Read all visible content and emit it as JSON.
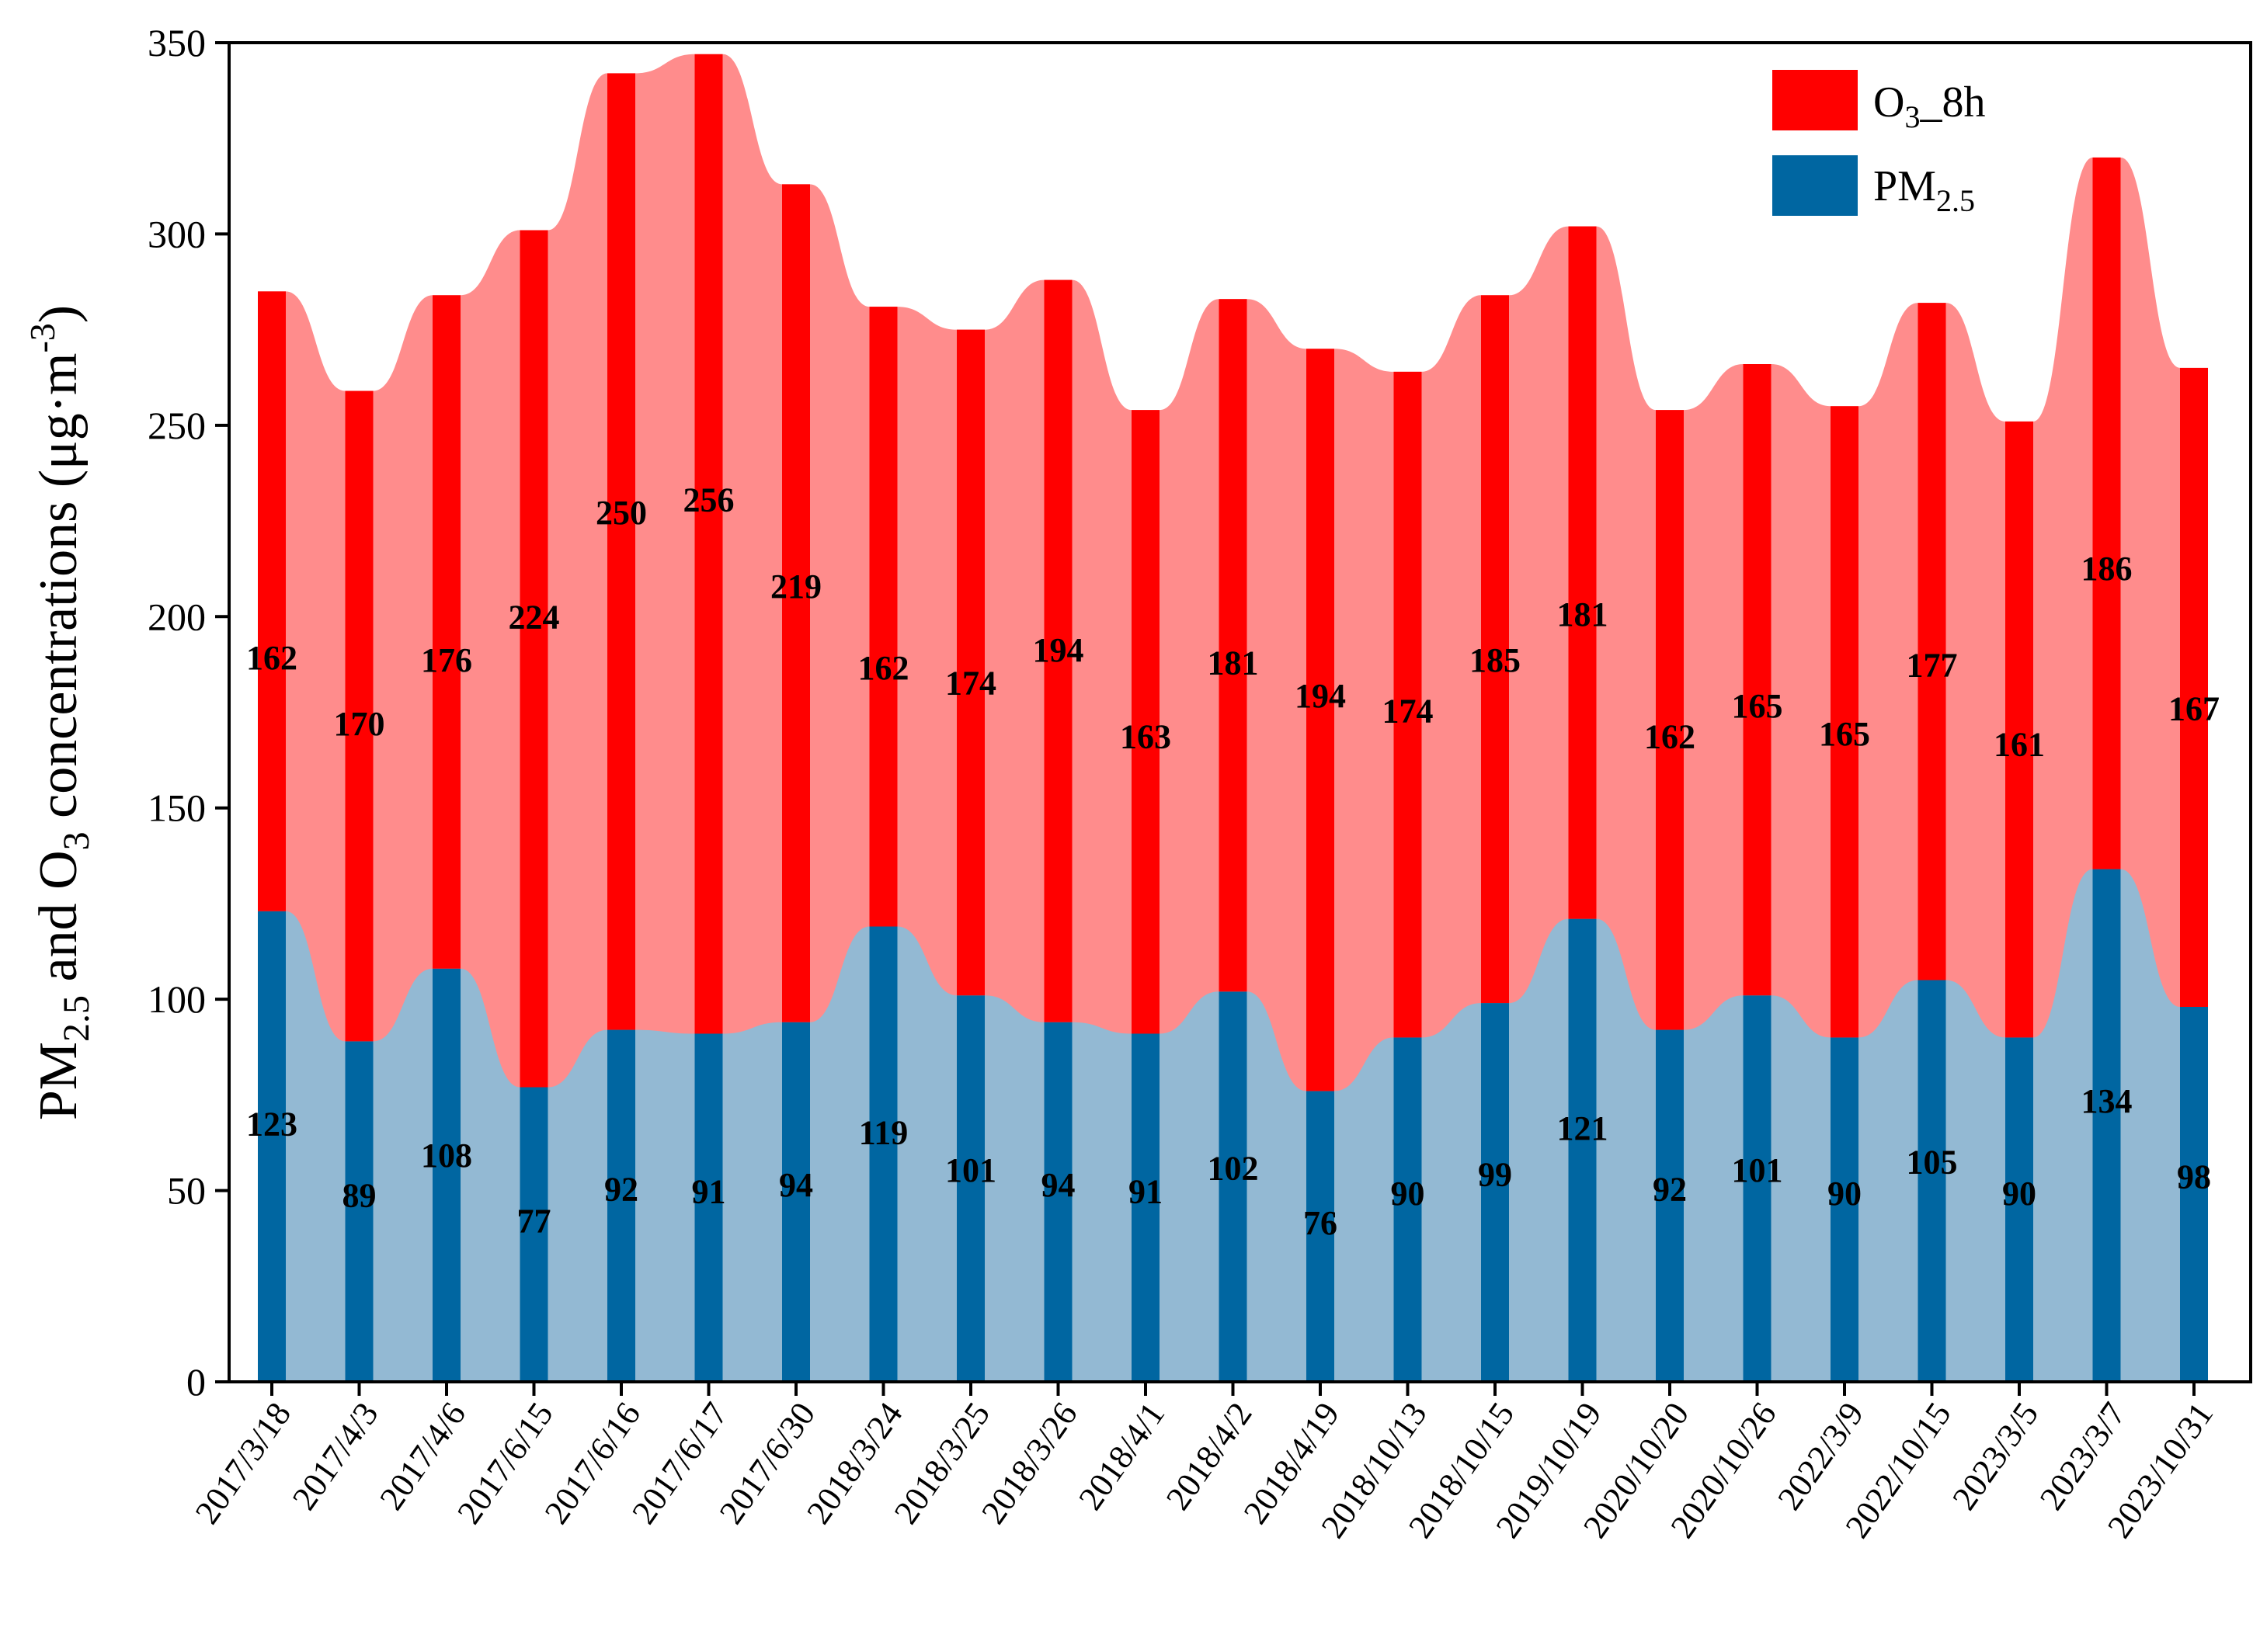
{
  "chart_data": {
    "type": "bar",
    "stacked": true,
    "title": "",
    "xlabel": "",
    "ylabel": {
      "p1": "PM",
      "p1_sub": "2.5",
      "p2": " and O",
      "p2_sub": "3",
      "p3": " concentrations (μg·m",
      "p3_sup": "-3",
      "p4": ")"
    },
    "ylim": [
      0,
      350
    ],
    "yticks": [
      0,
      50,
      100,
      150,
      200,
      250,
      300,
      350
    ],
    "categories": [
      "2017/3/18",
      "2017/4/3",
      "2017/4/6",
      "2017/6/15",
      "2017/6/16",
      "2017/6/17",
      "2017/6/30",
      "2018/3/24",
      "2018/3/25",
      "2018/3/26",
      "2018/4/1",
      "2018/4/2",
      "2018/4/19",
      "2018/10/13",
      "2018/10/15",
      "2019/10/19",
      "2020/10/20",
      "2020/10/26",
      "2022/3/9",
      "2022/10/15",
      "2023/3/5",
      "2023/3/7",
      "2023/10/31"
    ],
    "series": [
      {
        "name": "PM2.5",
        "values": [
          123,
          89,
          108,
          77,
          92,
          91,
          94,
          119,
          101,
          94,
          91,
          102,
          76,
          90,
          99,
          121,
          92,
          101,
          90,
          105,
          90,
          134,
          98
        ],
        "color": "#0066a1",
        "area_color": "#93b9d3"
      },
      {
        "name": "O3_8h",
        "values": [
          162,
          170,
          176,
          224,
          250,
          256,
          219,
          162,
          174,
          194,
          163,
          181,
          194,
          174,
          185,
          181,
          162,
          165,
          165,
          177,
          161,
          186,
          167
        ],
        "color": "#ff0000",
        "area_color": "#ff8c8c"
      }
    ],
    "legend": {
      "position": "top-right",
      "o3": {
        "main": "O",
        "sub": "3",
        "rest": "_8h"
      },
      "pm": {
        "main": "PM",
        "sub": "2.5"
      }
    }
  }
}
